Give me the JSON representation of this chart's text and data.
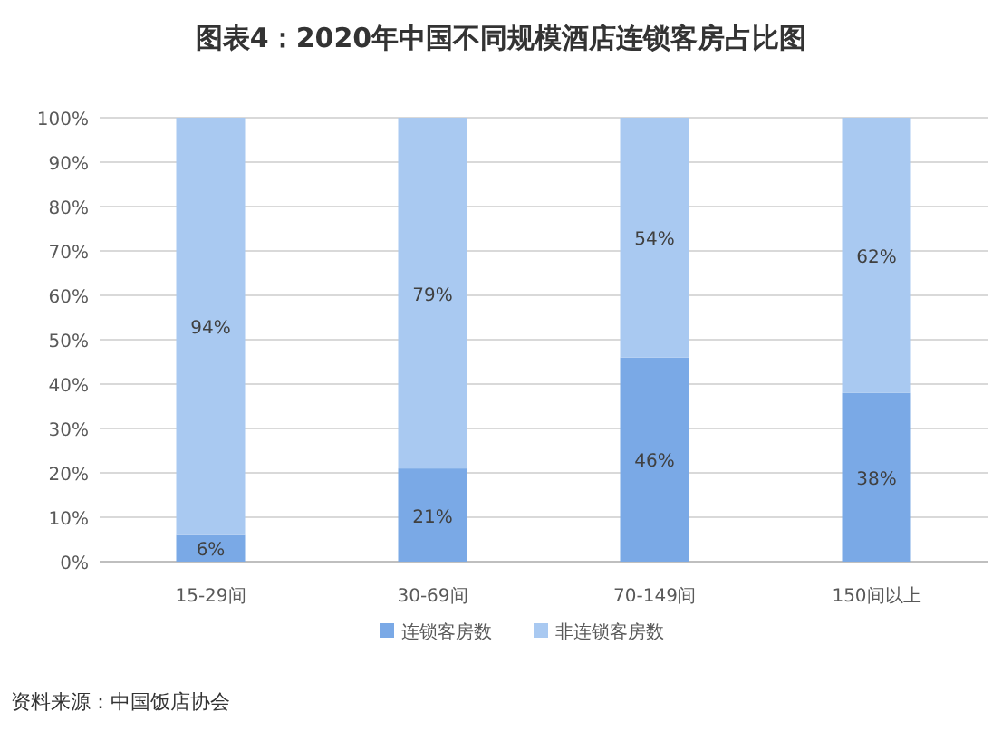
{
  "chart_data": {
    "type": "bar",
    "stacked": true,
    "title": "图表4：2020年中国不同规模酒店连锁客房占比图",
    "categories": [
      "15-29间",
      "30-69间",
      "70-149间",
      "150间以上"
    ],
    "series": [
      {
        "name": "连锁客房数",
        "color": "#7aa9e6",
        "values": [
          6,
          21,
          46,
          38
        ],
        "value_labels": [
          "6%",
          "21%",
          "46%",
          "38%"
        ]
      },
      {
        "name": "非连锁客房数",
        "color": "#a9c9f1",
        "values": [
          94,
          79,
          54,
          62
        ],
        "value_labels": [
          "94%",
          "79%",
          "54%",
          "62%"
        ]
      }
    ],
    "ylim": [
      0,
      100
    ],
    "yticks": [
      {
        "value": 0,
        "label": "0%"
      },
      {
        "value": 10,
        "label": "10%"
      },
      {
        "value": 20,
        "label": "20%"
      },
      {
        "value": 30,
        "label": "30%"
      },
      {
        "value": 40,
        "label": "40%"
      },
      {
        "value": 50,
        "label": "50%"
      },
      {
        "value": 60,
        "label": "60%"
      },
      {
        "value": 70,
        "label": "70%"
      },
      {
        "value": 80,
        "label": "80%"
      },
      {
        "value": 90,
        "label": "90%"
      },
      {
        "value": 100,
        "label": "100%"
      }
    ],
    "grid": "y",
    "legend": "bottom",
    "annotations": [
      "资料来源：中国饭店协会"
    ]
  }
}
